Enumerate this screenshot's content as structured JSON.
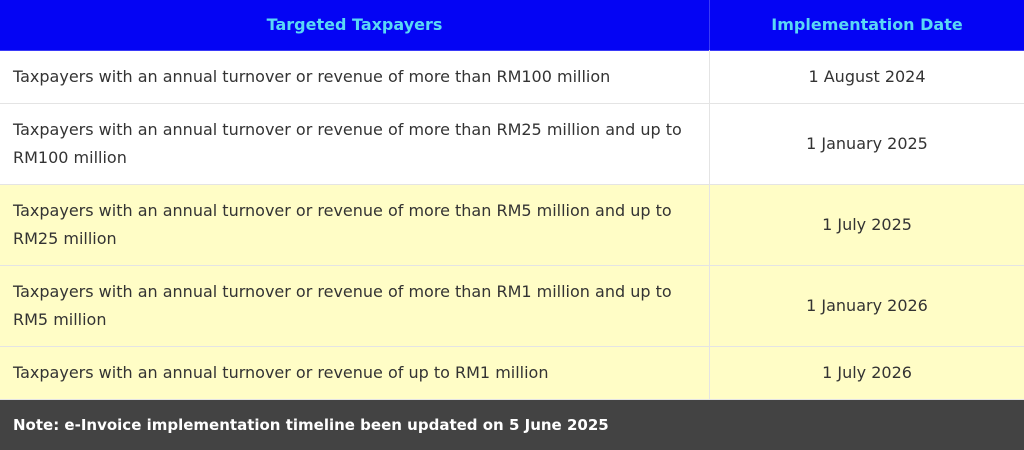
{
  "table": {
    "columns": [
      "Targeted Taxpayers",
      "Implementation Date"
    ],
    "rows": [
      [
        "Taxpayers with an annual turnover or revenue of more than RM100 million",
        "1 August 2024"
      ],
      [
        "Taxpayers with an annual turnover or revenue of more than RM25 million and up to RM100 million",
        "1 January 2025"
      ],
      [
        "Taxpayers with an annual turnover or revenue of more than RM5 million and up to RM25 million",
        "1 July 2025"
      ],
      [
        "Taxpayers with an annual turnover or revenue of more than RM1 million and up to RM5 million",
        "1 January 2026"
      ],
      [
        "Taxpayers with an annual turnover or revenue of up to RM1 million",
        "1 July 2026"
      ]
    ]
  },
  "note": "Note: e-Invoice implementation timeline been updated on 5 June 2025"
}
